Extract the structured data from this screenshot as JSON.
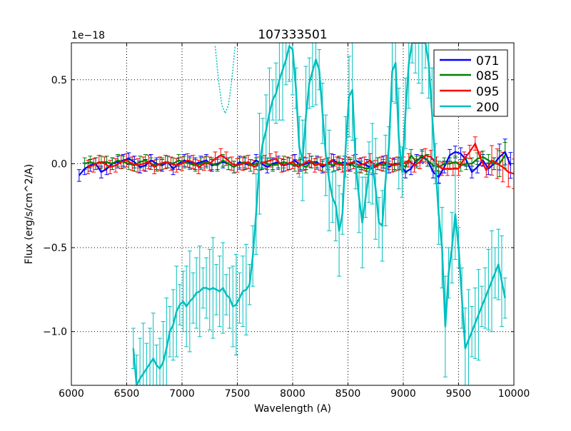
{
  "chart_data": {
    "type": "line",
    "title": "107333501",
    "xlabel": "Wavelength (A)",
    "ylabel": "Flux (erg/s/cm^2/A)",
    "y_offset_label": "1e−18",
    "xlim": [
      6000,
      10000
    ],
    "ylim": [
      -1.32,
      0.72
    ],
    "xticks": [
      6000,
      6500,
      7000,
      7500,
      8000,
      8500,
      9000,
      9500,
      10000
    ],
    "xtick_labels": [
      "6000",
      "6500",
      "7000",
      "7500",
      "8000",
      "8500",
      "9000",
      "9500",
      "10000"
    ],
    "yticks": [
      -1.0,
      -0.5,
      0.0,
      0.5
    ],
    "ytick_labels": [
      "−1.0",
      "−0.5",
      "0.0",
      "0.5"
    ],
    "grid": true,
    "legend_position": "top-right",
    "series": [
      {
        "name": "071",
        "color": "#0000ff",
        "x": [
          6070,
          6120,
          6170,
          6220,
          6270,
          6320,
          6370,
          6420,
          6470,
          6520,
          6570,
          6620,
          6670,
          6720,
          6770,
          6820,
          6870,
          6920,
          6970,
          7020,
          7070,
          7120,
          7170,
          7220,
          7270,
          7320,
          7370,
          7420,
          7470,
          7520,
          7570,
          7620,
          7670,
          7720,
          7770,
          7820,
          7870,
          7920,
          7970,
          8020,
          8070,
          8120,
          8170,
          8220,
          8270,
          8320,
          8370,
          8420,
          8470,
          8520,
          8570,
          8620,
          8670,
          8720,
          8770,
          8820,
          8870,
          8920,
          8970,
          9020,
          9070,
          9120,
          9170,
          9220,
          9270,
          9320,
          9370,
          9420,
          9470,
          9520,
          9570,
          9620,
          9670,
          9720,
          9770,
          9820,
          9870,
          9920,
          9970
        ],
        "y": [
          -0.07,
          -0.03,
          -0.01,
          0.0,
          -0.05,
          -0.03,
          0.0,
          0.01,
          0.02,
          0.03,
          0.01,
          -0.02,
          -0.01,
          0.02,
          0.0,
          -0.01,
          0.01,
          -0.03,
          0.0,
          0.02,
          0.01,
          0.0,
          0.01,
          0.02,
          -0.01,
          0.0,
          0.01,
          0.0,
          -0.02,
          0.01,
          0.0,
          -0.01,
          0.02,
          0.0,
          -0.02,
          0.0,
          0.01,
          -0.01,
          0.0,
          0.02,
          -0.01,
          0.0,
          0.01,
          0.01,
          -0.02,
          0.0,
          0.02,
          0.0,
          0.01,
          -0.01,
          0.02,
          0.0,
          -0.01,
          -0.03,
          0.0,
          0.01,
          -0.02,
          0.0,
          0.0,
          -0.05,
          -0.03,
          0.02,
          0.04,
          0.02,
          -0.05,
          -0.08,
          -0.02,
          0.05,
          0.07,
          0.06,
          0.02,
          -0.05,
          -0.02,
          0.02,
          -0.03,
          0.0,
          0.04,
          0.07,
          -0.01
        ],
        "err": 0.035,
        "err_extra": [
          9870,
          9920,
          9970
        ]
      },
      {
        "name": "085",
        "color": "#008000",
        "x": [
          6120,
          6170,
          6220,
          6270,
          6320,
          6370,
          6420,
          6470,
          6520,
          6570,
          6620,
          6670,
          6720,
          6770,
          6820,
          6870,
          6920,
          6970,
          7020,
          7070,
          7120,
          7170,
          7220,
          7270,
          7320,
          7370,
          7420,
          7470,
          7520,
          7570,
          7620,
          7670,
          7720,
          7770,
          7820,
          7870,
          7920,
          7970,
          8020,
          8070,
          8120,
          8170,
          8220,
          8270,
          8320,
          8370,
          8420,
          8470,
          8520,
          8570,
          8620,
          8670,
          8720,
          8770,
          8820,
          8870,
          8920,
          8970,
          9020,
          9070,
          9120,
          9170,
          9220,
          9270,
          9320,
          9370,
          9420,
          9470,
          9520,
          9570,
          9620,
          9670,
          9720,
          9770,
          9820,
          9870,
          9920
        ],
        "y": [
          0.0,
          0.01,
          0.0,
          0.01,
          0.01,
          0.0,
          0.02,
          0.01,
          0.0,
          -0.01,
          0.01,
          0.02,
          0.0,
          -0.01,
          0.0,
          0.01,
          0.0,
          0.02,
          0.01,
          0.0,
          -0.01,
          0.0,
          0.01,
          0.0,
          -0.01,
          0.02,
          0.0,
          -0.02,
          0.0,
          0.01,
          -0.01,
          0.0,
          0.01,
          0.0,
          -0.01,
          0.0,
          0.01,
          0.0,
          -0.01,
          0.0,
          -0.02,
          0.01,
          0.0,
          -0.01,
          0.0,
          -0.01,
          0.01,
          -0.01,
          0.0,
          -0.02,
          -0.02,
          -0.03,
          -0.02,
          0.0,
          -0.01,
          0.0,
          -0.01,
          0.0,
          -0.02,
          0.05,
          0.01,
          0.05,
          0.02,
          -0.01,
          -0.02,
          0.0,
          0.0,
          0.01,
          -0.01,
          0.0,
          0.0,
          0.03,
          0.04,
          0.02,
          0.0,
          0.0,
          0.05
        ],
        "err": 0.035,
        "err_extra": [
          9870,
          9920
        ]
      },
      {
        "name": "095",
        "color": "#ff0000",
        "x": [
          6150,
          6200,
          6250,
          6300,
          6350,
          6400,
          6450,
          6500,
          6550,
          6600,
          6650,
          6700,
          6750,
          6800,
          6850,
          6900,
          6950,
          7000,
          7050,
          7100,
          7150,
          7200,
          7250,
          7300,
          7350,
          7400,
          7450,
          7500,
          7550,
          7600,
          7650,
          7700,
          7750,
          7800,
          7850,
          7900,
          7950,
          8000,
          8050,
          8100,
          8150,
          8200,
          8250,
          8300,
          8350,
          8400,
          8450,
          8500,
          8550,
          8600,
          8650,
          8700,
          8750,
          8800,
          8850,
          8900,
          8950,
          9000,
          9050,
          9100,
          9150,
          9200,
          9250,
          9300,
          9350,
          9400,
          9450,
          9500,
          9550,
          9600,
          9650,
          9700,
          9750,
          9800,
          9850,
          9900,
          9950,
          10000
        ],
        "y": [
          -0.02,
          -0.01,
          0.01,
          0.0,
          -0.02,
          -0.01,
          0.01,
          0.02,
          0.0,
          -0.01,
          0.0,
          0.01,
          -0.02,
          0.0,
          0.01,
          0.0,
          -0.01,
          0.0,
          0.02,
          0.01,
          -0.02,
          0.0,
          0.0,
          0.03,
          0.05,
          0.03,
          0.0,
          -0.01,
          0.0,
          0.01,
          -0.02,
          0.0,
          0.01,
          0.02,
          0.03,
          -0.01,
          0.0,
          0.01,
          -0.02,
          0.0,
          0.02,
          -0.01,
          0.0,
          -0.01,
          0.02,
          0.0,
          -0.01,
          0.0,
          0.01,
          -0.01,
          0.0,
          0.02,
          -0.02,
          0.0,
          0.01,
          -0.01,
          0.0,
          0.0,
          0.02,
          -0.01,
          0.01,
          0.05,
          0.04,
          0.0,
          -0.03,
          -0.03,
          -0.03,
          -0.03,
          0.03,
          0.07,
          0.12,
          0.03,
          -0.04,
          0.02,
          0.0,
          -0.02,
          -0.05,
          -0.06
        ],
        "err": 0.04,
        "err_extra": [
          9800,
          9850,
          9900,
          9950,
          10000
        ]
      },
      {
        "name": "200",
        "color": "#00bfbf",
        "x": [
          6560,
          6590,
          6620,
          6650,
          6680,
          6710,
          6740,
          6770,
          6800,
          6830,
          6860,
          6890,
          6920,
          6950,
          6980,
          7010,
          7040,
          7070,
          7100,
          7130,
          7160,
          7190,
          7220,
          7250,
          7280,
          7310,
          7340,
          7370,
          7400,
          7430,
          7460,
          7490,
          7520,
          7550,
          7580,
          7610,
          7640,
          7670,
          7700,
          7730,
          7760,
          7790,
          7820,
          7850,
          7880,
          7910,
          7940,
          7970,
          8000,
          8030,
          8060,
          8090,
          8120,
          8150,
          8180,
          8210,
          8240,
          8270,
          8300,
          8330,
          8360,
          8390,
          8420,
          8450,
          8480,
          8510,
          8540,
          8570,
          8600,
          8630,
          8660,
          8690,
          8720,
          8750,
          8780,
          8810,
          8840,
          8870,
          8900,
          8930,
          8960,
          8990,
          9020,
          9050,
          9080,
          9110,
          9140,
          9170,
          9200,
          9230,
          9260,
          9290,
          9320,
          9350,
          9380,
          9410,
          9440,
          9470,
          9500,
          9530,
          9560,
          9590,
          9620,
          9650,
          9680,
          9710,
          9740,
          9770,
          9800,
          9830,
          9860,
          9890,
          9920
        ],
        "y": [
          -1.1,
          -1.32,
          -1.28,
          -1.25,
          -1.22,
          -1.19,
          -1.16,
          -1.2,
          -1.22,
          -1.18,
          -1.1,
          -1.0,
          -0.96,
          -0.88,
          -0.84,
          -0.82,
          -0.85,
          -0.82,
          -0.8,
          -0.77,
          -0.76,
          -0.74,
          -0.74,
          -0.75,
          -0.74,
          -0.75,
          -0.76,
          -0.74,
          -0.78,
          -0.8,
          -0.85,
          -0.84,
          -0.8,
          -0.76,
          -0.75,
          -0.72,
          -0.55,
          -0.3,
          0.0,
          0.12,
          0.2,
          0.3,
          0.38,
          0.42,
          0.5,
          0.56,
          0.62,
          0.7,
          0.68,
          0.45,
          0.1,
          0.02,
          0.28,
          0.48,
          0.55,
          0.62,
          0.56,
          0.3,
          0.05,
          -0.1,
          -0.2,
          -0.25,
          -0.4,
          -0.3,
          0.1,
          0.4,
          0.44,
          0.0,
          -0.2,
          -0.35,
          -0.2,
          -0.05,
          0.0,
          -0.15,
          -0.35,
          -0.37,
          -0.1,
          0.1,
          0.55,
          0.6,
          0.15,
          -0.05,
          0.3,
          0.6,
          0.72,
          0.72,
          0.72,
          0.72,
          0.72,
          0.6,
          0.3,
          0.0,
          -0.3,
          -0.5,
          -0.97,
          -0.65,
          -0.5,
          -0.3,
          -0.5,
          -0.8,
          -1.1,
          -1.05,
          -1.0,
          -0.95,
          -0.9,
          -0.85,
          -0.8,
          -0.75,
          -0.7,
          -0.65,
          -0.6,
          -0.7,
          -0.8
        ],
        "err": 0.12,
        "dotted_segment": {
          "x": [
            7300,
            7330,
            7360,
            7390,
            7420,
            7450,
            7480
          ],
          "y": [
            0.7,
            0.5,
            0.35,
            0.3,
            0.35,
            0.5,
            0.7
          ]
        }
      }
    ]
  }
}
